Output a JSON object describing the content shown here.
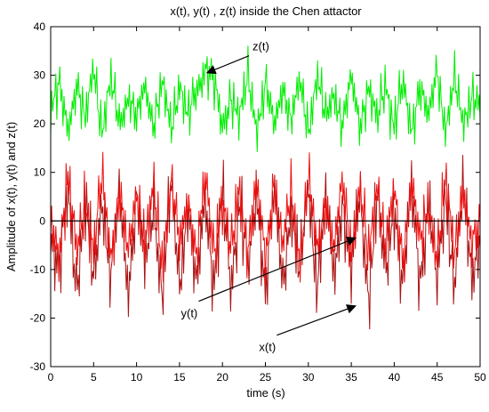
{
  "chart_data": {
    "type": "line",
    "title": "x(t), y(t) , z(t) inside the Chen attactor",
    "xlabel": "time (s)",
    "ylabel": "Amplitude of x(t), y(t) and z(t)",
    "xlim": [
      0,
      50
    ],
    "ylim": [
      -30,
      40
    ],
    "xticks": [
      0,
      5,
      10,
      15,
      20,
      25,
      30,
      35,
      40,
      45,
      50
    ],
    "yticks": [
      -30,
      -20,
      -10,
      0,
      10,
      20,
      30,
      40
    ],
    "grid": false,
    "legend": "none",
    "series": [
      {
        "key": "z",
        "color": "#00ee00",
        "description_range": [
          12,
          38
        ],
        "sample_t": [
          0,
          1,
          2,
          3,
          4,
          5,
          6,
          7,
          8,
          9,
          10,
          11,
          12,
          13,
          14,
          15,
          16,
          17,
          18,
          19,
          20,
          21,
          22,
          23,
          24,
          25,
          26,
          27,
          28,
          29,
          30,
          31,
          32,
          33,
          34,
          35,
          36,
          37,
          38,
          39,
          40,
          41,
          42,
          43,
          44,
          45,
          46,
          47,
          48,
          49,
          50
        ],
        "sample_values": [
          21,
          28,
          17,
          30,
          16,
          38,
          14,
          30,
          18,
          27,
          16,
          31,
          17,
          29,
          15,
          32,
          17,
          28,
          38,
          30,
          15,
          28,
          18,
          32,
          17,
          29,
          15,
          31,
          17,
          30,
          16,
          33,
          17,
          29,
          16,
          31,
          17,
          30,
          16,
          32,
          17,
          29,
          15,
          31,
          17,
          35,
          16,
          30,
          17,
          28,
          21
        ]
      },
      {
        "key": "y",
        "color": "#aa1111",
        "description_range": [
          -23,
          15
        ],
        "sample_t": [
          0,
          1,
          2,
          3,
          4,
          5,
          6,
          7,
          8,
          9,
          10,
          11,
          12,
          13,
          14,
          15,
          16,
          17,
          18,
          19,
          20,
          21,
          22,
          23,
          24,
          25,
          26,
          27,
          28,
          29,
          30,
          31,
          32,
          33,
          34,
          35,
          36,
          37,
          38,
          39,
          40,
          41,
          42,
          43,
          44,
          45,
          46,
          47,
          48,
          49,
          50
        ],
        "sample_values": [
          0,
          -14,
          12,
          -18,
          10,
          -20,
          13,
          -17,
          11,
          -21,
          12,
          -16,
          10,
          -22,
          13,
          -18,
          11,
          -23,
          12,
          -17,
          10,
          -20,
          13,
          -16,
          11,
          -19,
          12,
          -21,
          10,
          -17,
          13,
          -18,
          11,
          -20,
          12,
          -16,
          10,
          -22,
          13,
          -18,
          11,
          -19,
          12,
          -17,
          10,
          -21,
          13,
          -18,
          11,
          -16,
          0
        ]
      },
      {
        "key": "x",
        "color": "#ee1111",
        "description_range": [
          -15,
          16
        ],
        "sample_t": [
          0,
          1,
          2,
          3,
          4,
          5,
          6,
          7,
          8,
          9,
          10,
          11,
          12,
          13,
          14,
          15,
          16,
          17,
          18,
          19,
          20,
          21,
          22,
          23,
          24,
          25,
          26,
          27,
          28,
          29,
          30,
          31,
          32,
          33,
          34,
          35,
          36,
          37,
          38,
          39,
          40,
          41,
          42,
          43,
          44,
          45,
          46,
          47,
          48,
          49,
          50
        ],
        "sample_values": [
          0,
          -9,
          13,
          -11,
          9,
          -12,
          14,
          -10,
          8,
          -13,
          12,
          -9,
          10,
          -14,
          15,
          -11,
          9,
          -12,
          13,
          -10,
          8,
          -13,
          12,
          -9,
          10,
          -12,
          14,
          -11,
          9,
          -13,
          12,
          -10,
          8,
          -12,
          13,
          -9,
          10,
          -14,
          15,
          -11,
          9,
          -12,
          13,
          -10,
          8,
          -13,
          12,
          -9,
          10,
          -11,
          0
        ]
      }
    ],
    "zero_line": {
      "y": 0,
      "color": "#000000"
    },
    "annotations": [
      {
        "text": "z(t)",
        "text_at": [
          23.5,
          34
        ],
        "arrow_to": [
          18.2,
          30.5
        ]
      },
      {
        "text": "y(t)",
        "text_at": [
          16.2,
          -18
        ],
        "arrow_to": [
          35.5,
          -3.5
        ]
      },
      {
        "text": "x(t)",
        "text_at": [
          25.3,
          -25
        ],
        "arrow_to": [
          35.5,
          -17.5
        ]
      }
    ]
  }
}
